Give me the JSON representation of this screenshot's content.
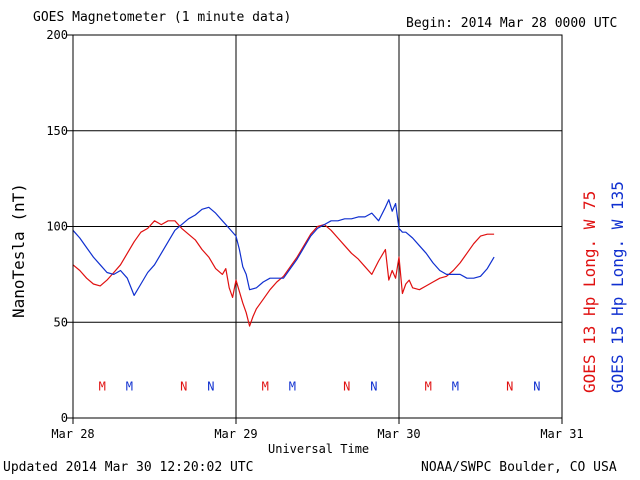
{
  "header": {
    "title": "GOES Magnetometer (1 minute data)",
    "begin": "Begin:  2014 Mar 28 0000 UTC"
  },
  "footer": {
    "updated": "Updated 2014 Mar 30 12:20:02 UTC",
    "credit": "NOAA/SWPC Boulder, CO USA"
  },
  "chart_data": {
    "type": "line",
    "title": "GOES Magnetometer (1 minute data)",
    "xlabel": "Universal Time",
    "ylabel": "NanoTesla (nT)",
    "xlim": [
      0,
      72
    ],
    "ylim": [
      0,
      200
    ],
    "yticks": [
      0,
      50,
      100,
      150,
      200
    ],
    "xticks": [
      {
        "h": 0,
        "label": "Mar 28"
      },
      {
        "h": 24,
        "label": "Mar 29"
      },
      {
        "h": 48,
        "label": "Mar 30"
      },
      {
        "h": 72,
        "label": "Mar 31"
      }
    ],
    "grid": true,
    "legend_position": "right, vertical",
    "series": [
      {
        "name": "GOES 13 Hp  Long. W 75",
        "color": "#e01010",
        "x": [
          0,
          1,
          2,
          3,
          4,
          5,
          6,
          7,
          8,
          9,
          10,
          11,
          12,
          13,
          14,
          15,
          16,
          17,
          18,
          19,
          20,
          21,
          22,
          22.5,
          23,
          23.5,
          24,
          24.5,
          25,
          25.5,
          26,
          26.5,
          27,
          28,
          29,
          30,
          31,
          32,
          33,
          34,
          35,
          36,
          37,
          38,
          39,
          40,
          41,
          42,
          43,
          44,
          45,
          46,
          46.5,
          47,
          47.5,
          48,
          48.5,
          49,
          49.5,
          50,
          51,
          52,
          53,
          54,
          55,
          56,
          57,
          58,
          59,
          60,
          61,
          62
        ],
        "values": [
          80,
          77,
          73,
          70,
          69,
          72,
          76,
          80,
          86,
          92,
          97,
          99,
          103,
          101,
          103,
          103,
          99,
          96,
          93,
          88,
          84,
          78,
          75,
          78,
          68,
          63,
          72,
          66,
          60,
          55,
          48,
          53,
          57,
          62,
          67,
          71,
          74,
          79,
          84,
          90,
          96,
          100,
          101,
          98,
          94,
          90,
          86,
          83,
          79,
          75,
          82,
          88,
          72,
          77,
          73,
          84,
          65,
          70,
          72,
          68,
          67,
          69,
          71,
          73,
          74,
          77,
          81,
          86,
          91,
          95,
          96,
          96
        ]
      },
      {
        "name": "GOES 15 Hp  Long. W 135",
        "color": "#1030d0",
        "x": [
          0,
          1,
          2,
          3,
          4,
          5,
          6,
          7,
          8,
          9,
          10,
          11,
          12,
          13,
          14,
          15,
          16,
          17,
          18,
          19,
          20,
          21,
          22,
          23,
          24,
          24.5,
          25,
          25.5,
          26,
          27,
          28,
          29,
          30,
          31,
          32,
          33,
          34,
          35,
          36,
          37,
          38,
          39,
          40,
          41,
          42,
          43,
          44,
          45,
          46,
          46.5,
          47,
          47.5,
          48,
          48.5,
          49,
          50,
          51,
          52,
          53,
          54,
          55,
          56,
          57,
          58,
          59,
          60,
          61,
          62
        ],
        "values": [
          98,
          94,
          89,
          84,
          80,
          76,
          75,
          77,
          73,
          64,
          70,
          76,
          80,
          86,
          92,
          98,
          101,
          104,
          106,
          109,
          110,
          107,
          103,
          99,
          95,
          88,
          79,
          75,
          67,
          68,
          71,
          73,
          73,
          73,
          78,
          83,
          89,
          95,
          99,
          101,
          103,
          103,
          104,
          104,
          105,
          105,
          107,
          103,
          110,
          114,
          108,
          112,
          99,
          97,
          97,
          94,
          90,
          86,
          81,
          77,
          75,
          75,
          75,
          73,
          73,
          74,
          78,
          84
        ]
      }
    ],
    "markers": [
      {
        "h": 4.3,
        "letter": "M",
        "color": "#e01010"
      },
      {
        "h": 8.3,
        "letter": "M",
        "color": "#1030d0"
      },
      {
        "h": 16.3,
        "letter": "N",
        "color": "#e01010"
      },
      {
        "h": 20.3,
        "letter": "N",
        "color": "#1030d0"
      },
      {
        "h": 28.3,
        "letter": "M",
        "color": "#e01010"
      },
      {
        "h": 32.3,
        "letter": "M",
        "color": "#1030d0"
      },
      {
        "h": 40.3,
        "letter": "N",
        "color": "#e01010"
      },
      {
        "h": 44.3,
        "letter": "N",
        "color": "#1030d0"
      },
      {
        "h": 52.3,
        "letter": "M",
        "color": "#e01010"
      },
      {
        "h": 56.3,
        "letter": "M",
        "color": "#1030d0"
      },
      {
        "h": 64.3,
        "letter": "N",
        "color": "#e01010"
      },
      {
        "h": 68.3,
        "letter": "N",
        "color": "#1030d0"
      }
    ],
    "marker_level": 17
  }
}
